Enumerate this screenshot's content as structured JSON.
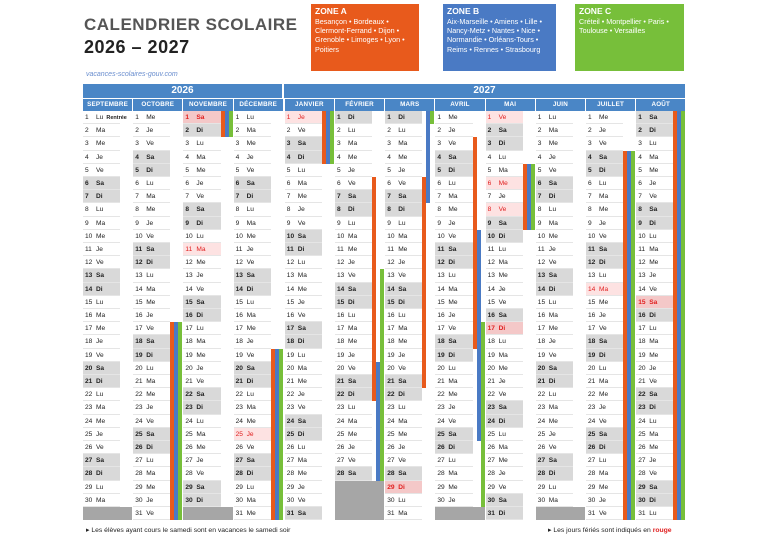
{
  "title": {
    "line1": "CALENDRIER SCOLAIRE",
    "line2": "2026 – 2027"
  },
  "zones": [
    {
      "id": "A",
      "name": "ZONE A",
      "cities": "Besançon • Bordeaux • Clermont-Ferrand • Dijon • Grenoble • Limoges • Lyon • Poitiers",
      "color": "#e85a1c"
    },
    {
      "id": "B",
      "name": "ZONE B",
      "cities": "Aix-Marseille • Amiens • Lille • Nancy-Metz • Nantes • Nice • Normandie • Orléans-Tours • Reims • Rennes • Strasbourg",
      "color": "#4a7ac4"
    },
    {
      "id": "C",
      "name": "ZONE C",
      "cities": "Créteil • Montpellier • Paris • Toulouse • Versailles",
      "color": "#77bf3a"
    }
  ],
  "site": "vacances-scolaires-gouv.com",
  "years": [
    "2026",
    "2027"
  ],
  "rentree_label": "Rentrée",
  "months": [
    {
      "name": "SEPTEMBRE",
      "days": 30,
      "start": 1,
      "holidays": []
    },
    {
      "name": "OCTOBRE",
      "days": 31,
      "start": 3,
      "holidays": []
    },
    {
      "name": "NOVEMBRE",
      "days": 30,
      "start": 6,
      "holidays": [
        1,
        11
      ]
    },
    {
      "name": "DÉCEMBRE",
      "days": 31,
      "start": 1,
      "holidays": [
        25
      ]
    },
    {
      "name": "JANVIER",
      "days": 31,
      "start": 4,
      "holidays": [
        1
      ]
    },
    {
      "name": "FÉVRIER",
      "days": 28,
      "start": 0,
      "holidays": []
    },
    {
      "name": "MARS",
      "days": 31,
      "start": 0,
      "holidays": [
        29
      ]
    },
    {
      "name": "AVRIL",
      "days": 30,
      "start": 3,
      "holidays": []
    },
    {
      "name": "MAI",
      "days": 31,
      "start": 5,
      "holidays": [
        1,
        6,
        8,
        17
      ]
    },
    {
      "name": "JUIN",
      "days": 30,
      "start": 1,
      "holidays": []
    },
    {
      "name": "JUILLET",
      "days": 31,
      "start": 3,
      "holidays": [
        14
      ]
    },
    {
      "name": "AOÛT",
      "days": 31,
      "start": 6,
      "holidays": [
        15
      ]
    }
  ],
  "day_abbr": [
    "Di",
    "Lu",
    "Ma",
    "Me",
    "Je",
    "Ve",
    "Sa"
  ],
  "vacations": [
    {
      "zone": "A",
      "month": 1,
      "from": 17,
      "to": 31
    },
    {
      "zone": "B",
      "month": 1,
      "from": 17,
      "to": 31
    },
    {
      "zone": "C",
      "month": 1,
      "from": 17,
      "to": 31
    },
    {
      "zone": "A",
      "month": 2,
      "from": 1,
      "to": 2
    },
    {
      "zone": "B",
      "month": 2,
      "from": 1,
      "to": 2
    },
    {
      "zone": "C",
      "month": 2,
      "from": 1,
      "to": 2
    },
    {
      "zone": "A",
      "month": 3,
      "from": 19,
      "to": 31
    },
    {
      "zone": "B",
      "month": 3,
      "from": 19,
      "to": 31
    },
    {
      "zone": "C",
      "month": 3,
      "from": 19,
      "to": 31
    },
    {
      "zone": "A",
      "month": 4,
      "from": 1,
      "to": 4
    },
    {
      "zone": "B",
      "month": 4,
      "from": 1,
      "to": 4
    },
    {
      "zone": "C",
      "month": 4,
      "from": 1,
      "to": 4
    },
    {
      "zone": "A",
      "month": 5,
      "from": 6,
      "to": 22
    },
    {
      "zone": "B",
      "month": 5,
      "from": 20,
      "to": 28
    },
    {
      "zone": "C",
      "month": 5,
      "from": 13,
      "to": 28
    },
    {
      "zone": "C",
      "month": 6,
      "from": 1,
      "to": 1
    },
    {
      "zone": "A",
      "month": 6,
      "from": 6,
      "to": 21
    },
    {
      "zone": "B",
      "month": 6,
      "from": 1,
      "to": 7
    },
    {
      "zone": "A",
      "month": 7,
      "from": 3,
      "to": 18
    },
    {
      "zone": "B",
      "month": 7,
      "from": 10,
      "to": 25
    },
    {
      "zone": "C",
      "month": 7,
      "from": 17,
      "to": 30
    },
    {
      "zone": "A",
      "month": 8,
      "from": 5,
      "to": 9
    },
    {
      "zone": "B",
      "month": 8,
      "from": 5,
      "to": 9
    },
    {
      "zone": "C",
      "month": 8,
      "from": 5,
      "to": 9
    },
    {
      "zone": "A",
      "month": 10,
      "from": 4,
      "to": 31
    },
    {
      "zone": "B",
      "month": 10,
      "from": 4,
      "to": 31
    },
    {
      "zone": "C",
      "month": 10,
      "from": 4,
      "to": 31
    },
    {
      "zone": "A",
      "month": 11,
      "from": 1,
      "to": 31
    },
    {
      "zone": "B",
      "month": 11,
      "from": 1,
      "to": 31
    },
    {
      "zone": "C",
      "month": 11,
      "from": 1,
      "to": 31
    }
  ],
  "footer": {
    "left": "Les élèves ayant cours le samedi sont en vacances le samedi soir",
    "right_prefix": "Les jours fériés sont indiqués en",
    "right_red": "rouge"
  }
}
